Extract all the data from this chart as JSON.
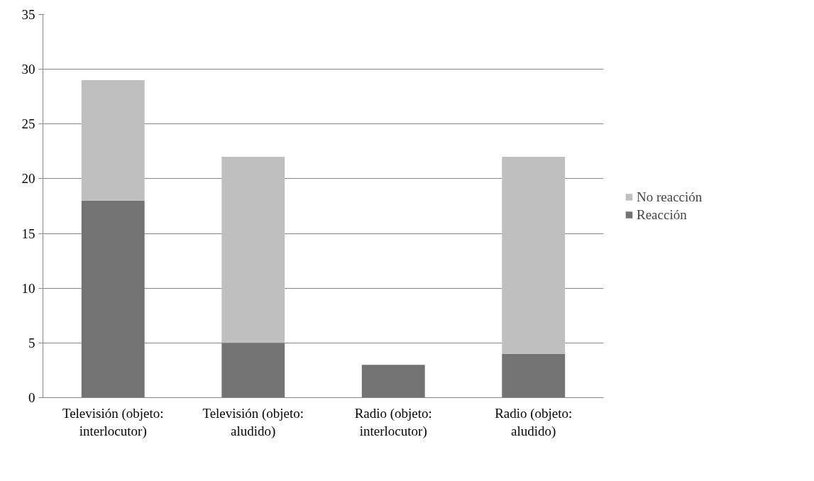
{
  "chart_data": {
    "type": "bar",
    "stacked": true,
    "categories": [
      "Televisión (objeto: interlocutor)",
      "Televisión (objeto: aludido)",
      "Radio (objeto: interlocutor)",
      "Radio (objeto: aludido)"
    ],
    "series": [
      {
        "name": "Reacción",
        "color": "#737373",
        "values": [
          18,
          5,
          3,
          4
        ]
      },
      {
        "name": "No reacción",
        "color": "#bfbfbf",
        "values": [
          11,
          17,
          0,
          18
        ]
      }
    ],
    "ylim": [
      0,
      35
    ],
    "yticks": [
      0,
      5,
      10,
      15,
      20,
      25,
      30,
      35
    ],
    "grid": "y",
    "legend": "right"
  }
}
